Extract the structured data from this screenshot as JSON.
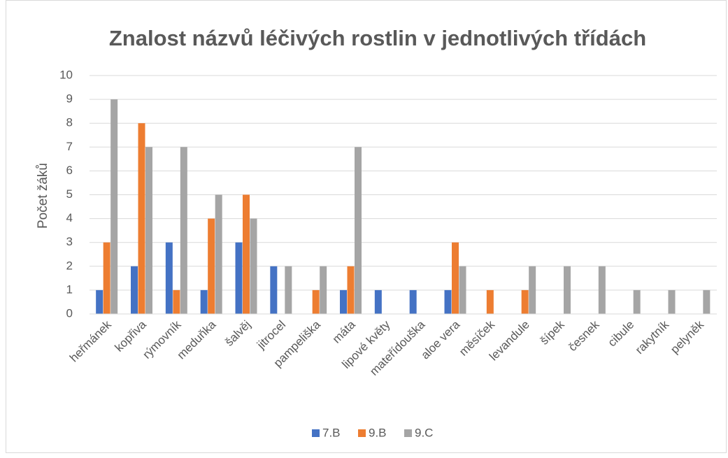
{
  "chart_data": {
    "type": "bar",
    "title": "Znalost názvů léčivých rostlin v jednotlivých třídách",
    "y_label": "Počet žáků",
    "categories": [
      "heřmánek",
      "kopřiva",
      "rýmovník",
      "meduňka",
      "šalvěj",
      "jitrocel",
      "pampeliška",
      "máta",
      "lipové květy",
      "mateřídouška",
      "aloe vera",
      "měsíček",
      "levandule",
      "šípek",
      "česnek",
      "cibule",
      "rakytník",
      "pelyněk"
    ],
    "series": [
      {
        "name": "7.B",
        "color": "#4472c4",
        "values": [
          1,
          2,
          3,
          1,
          3,
          2,
          null,
          1,
          1,
          1,
          1,
          null,
          null,
          null,
          null,
          null,
          null,
          null
        ]
      },
      {
        "name": "9.B",
        "color": "#ed7d31",
        "values": [
          3,
          8,
          1,
          4,
          5,
          null,
          1,
          2,
          null,
          null,
          3,
          1,
          1,
          null,
          null,
          null,
          null,
          null
        ]
      },
      {
        "name": "9.C",
        "color": "#a5a5a5",
        "values": [
          9,
          7,
          7,
          5,
          4,
          2,
          2,
          7,
          null,
          null,
          2,
          null,
          2,
          2,
          2,
          1,
          1,
          1
        ]
      }
    ],
    "ylim": [
      0,
      10
    ],
    "yticks": [
      0,
      1,
      2,
      3,
      4,
      5,
      6,
      7,
      8,
      9,
      10
    ],
    "grid": true,
    "legend": "bottom"
  }
}
